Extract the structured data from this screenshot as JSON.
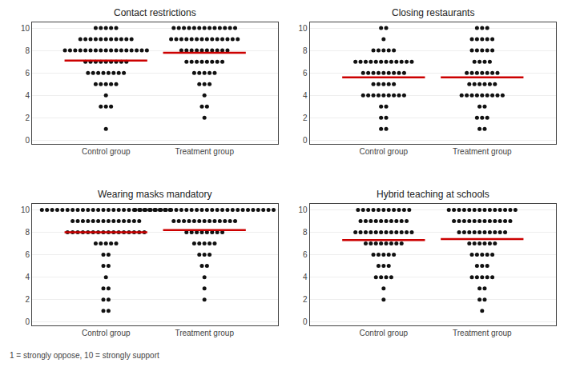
{
  "chart_data": [
    {
      "type": "dot",
      "title": "Contact restrictions",
      "categories": [
        "Control group",
        "Treatment group"
      ],
      "y_levels": [
        10,
        9,
        8,
        7,
        6,
        5,
        4,
        3,
        2,
        1
      ],
      "series": [
        {
          "type": "dot",
          "color": "#111111",
          "counts": [
            [
              5,
              11,
              17,
              9,
              8,
              5,
              1,
              3,
              0,
              1
            ],
            [
              13,
              14,
              10,
              8,
              5,
              3,
              1,
              2,
              1,
              0
            ]
          ]
        },
        {
          "type": "mean",
          "color": "#cc0000",
          "values": [
            7.1,
            7.8
          ]
        }
      ],
      "ylim": [
        -0.3,
        10.5
      ],
      "yticks": [
        0,
        2,
        4,
        6,
        8,
        10
      ],
      "grid": true
    },
    {
      "type": "dot",
      "title": "Closing restaurants",
      "categories": [
        "Control group",
        "Treatment group"
      ],
      "y_levels": [
        10,
        9,
        8,
        7,
        6,
        5,
        4,
        3,
        2,
        1
      ],
      "series": [
        {
          "type": "dot",
          "color": "#111111",
          "counts": [
            [
              2,
              1,
              5,
              12,
              9,
              5,
              9,
              2,
              2,
              2
            ],
            [
              3,
              5,
              5,
              4,
              7,
              6,
              9,
              2,
              3,
              2
            ]
          ]
        },
        {
          "type": "mean",
          "color": "#cc0000",
          "values": [
            5.6,
            5.6
          ]
        }
      ],
      "ylim": [
        -0.3,
        10.5
      ],
      "yticks": [
        0,
        2,
        4,
        6,
        8,
        10
      ],
      "grid": true
    },
    {
      "type": "dot",
      "title": "Wearing masks mandatory",
      "categories": [
        "Control group",
        "Treatment group"
      ],
      "y_levels": [
        10,
        9,
        8,
        7,
        6,
        5,
        4,
        3,
        2,
        1
      ],
      "series": [
        {
          "type": "dot",
          "color": "#111111",
          "counts": [
            [
              26,
              14,
              16,
              5,
              2,
              2,
              1,
              2,
              2,
              2
            ],
            [
              28,
              13,
              8,
              5,
              3,
              2,
              1,
              1,
              1,
              0
            ]
          ]
        },
        {
          "type": "mean",
          "color": "#cc0000",
          "values": [
            8.0,
            8.2
          ]
        }
      ],
      "ylim": [
        -0.3,
        10.5
      ],
      "yticks": [
        0,
        2,
        4,
        6,
        8,
        10
      ],
      "grid": true
    },
    {
      "type": "dot",
      "title": "Hybrid teaching at schools",
      "categories": [
        "Control group",
        "Treatment group"
      ],
      "y_levels": [
        10,
        9,
        8,
        7,
        6,
        5,
        4,
        3,
        2,
        1
      ],
      "series": [
        {
          "type": "dot",
          "color": "#111111",
          "counts": [
            [
              11,
              10,
              12,
              8,
              5,
              3,
              4,
              1,
              1,
              0
            ],
            [
              14,
              12,
              10,
              6,
              5,
              3,
              5,
              2,
              2,
              1
            ]
          ]
        },
        {
          "type": "mean",
          "color": "#cc0000",
          "values": [
            7.3,
            7.4
          ]
        }
      ],
      "ylim": [
        -0.3,
        10.5
      ],
      "yticks": [
        0,
        2,
        4,
        6,
        8,
        10
      ],
      "grid": true,
      "annotations": [
        "1 = strongly oppose, 10 = strongly support"
      ]
    }
  ]
}
